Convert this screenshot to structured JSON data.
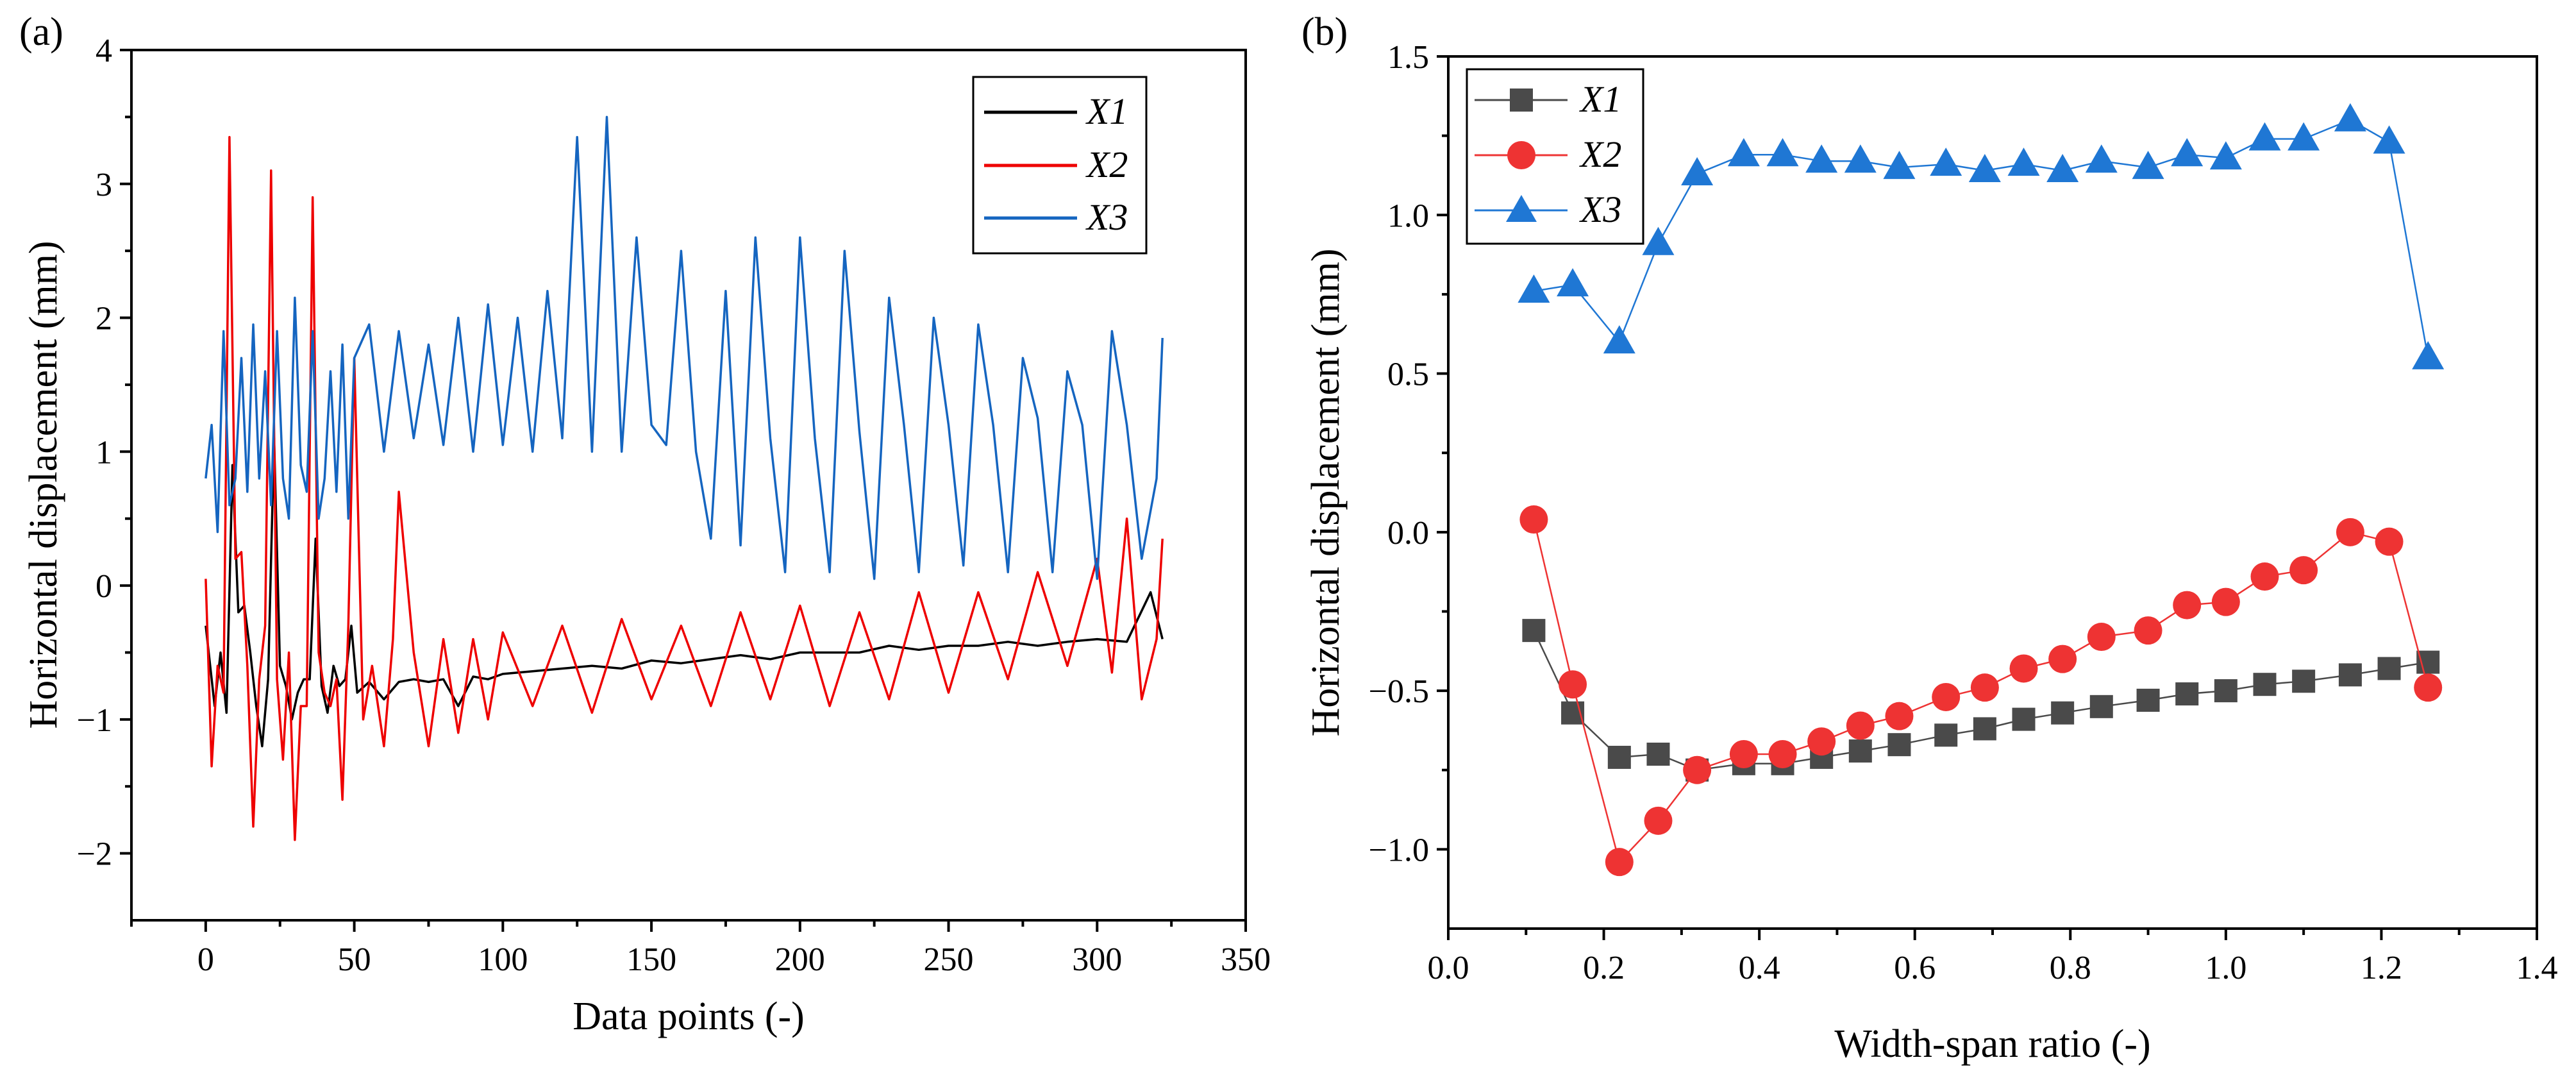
{
  "chart_data": [
    {
      "type": "line",
      "panel_label": "(a)",
      "xlabel": "Data points (-)",
      "ylabel": "Horizontal displacement (mm)",
      "xlim": [
        -25,
        350
      ],
      "ylim": [
        -2.5,
        4
      ],
      "xticks": [
        "0",
        "50",
        "100",
        "150",
        "200",
        "250",
        "300",
        "350"
      ],
      "yticks": [
        "−2",
        "−1",
        "0",
        "1",
        "2",
        "3",
        "4"
      ],
      "legend_position": "top-right",
      "series": [
        {
          "name": "X1",
          "color": "#000000",
          "x": [
            0,
            3,
            5,
            7,
            9,
            11,
            13,
            15,
            17,
            19,
            21,
            23,
            25,
            27,
            29,
            31,
            33,
            35,
            37,
            39,
            41,
            43,
            45,
            47,
            49,
            51,
            55,
            60,
            65,
            70,
            75,
            80,
            85,
            90,
            95,
            100,
            110,
            120,
            130,
            140,
            150,
            160,
            170,
            180,
            190,
            200,
            210,
            220,
            230,
            240,
            250,
            260,
            270,
            280,
            290,
            300,
            310,
            318,
            322
          ],
          "y": [
            -0.3,
            -0.9,
            -0.5,
            -0.95,
            0.9,
            -0.2,
            -0.15,
            -0.5,
            -0.9,
            -1.2,
            -0.7,
            1.1,
            -0.6,
            -0.75,
            -1.0,
            -0.8,
            -0.7,
            -0.7,
            0.35,
            -0.75,
            -0.95,
            -0.6,
            -0.75,
            -0.7,
            -0.3,
            -0.8,
            -0.72,
            -0.85,
            -0.72,
            -0.7,
            -0.72,
            -0.7,
            -0.9,
            -0.68,
            -0.7,
            -0.66,
            -0.64,
            -0.62,
            -0.6,
            -0.62,
            -0.56,
            -0.58,
            -0.55,
            -0.52,
            -0.55,
            -0.5,
            -0.5,
            -0.5,
            -0.45,
            -0.48,
            -0.45,
            -0.45,
            -0.42,
            -0.45,
            -0.42,
            -0.4,
            -0.42,
            -0.05,
            -0.4
          ]
        },
        {
          "name": "X2",
          "color": "#ee0000",
          "x": [
            0,
            2,
            4,
            6,
            8,
            10,
            12,
            14,
            16,
            18,
            20,
            22,
            24,
            26,
            28,
            30,
            32,
            34,
            36,
            38,
            40,
            42,
            44,
            46,
            48,
            50,
            53,
            56,
            60,
            63,
            65,
            70,
            75,
            80,
            85,
            90,
            95,
            100,
            110,
            120,
            130,
            140,
            150,
            160,
            170,
            180,
            190,
            200,
            210,
            220,
            230,
            240,
            250,
            260,
            270,
            280,
            290,
            300,
            305,
            310,
            315,
            320,
            322
          ],
          "y": [
            0.05,
            -1.35,
            -0.6,
            -0.8,
            3.35,
            0.2,
            0.25,
            -0.6,
            -1.8,
            -0.7,
            -0.3,
            3.1,
            -0.7,
            -1.3,
            -0.5,
            -1.9,
            -0.9,
            -0.9,
            2.9,
            -0.5,
            -0.8,
            -0.9,
            -0.7,
            -1.6,
            -0.3,
            1.7,
            -1.0,
            -0.6,
            -1.2,
            -0.4,
            0.7,
            -0.5,
            -1.2,
            -0.4,
            -1.1,
            -0.4,
            -1.0,
            -0.35,
            -0.9,
            -0.3,
            -0.95,
            -0.25,
            -0.85,
            -0.3,
            -0.9,
            -0.2,
            -0.85,
            -0.15,
            -0.9,
            -0.2,
            -0.85,
            -0.05,
            -0.8,
            -0.05,
            -0.7,
            0.1,
            -0.6,
            0.2,
            -0.65,
            0.5,
            -0.85,
            -0.4,
            0.35
          ]
        },
        {
          "name": "X3",
          "color": "#1565c0",
          "x": [
            0,
            2,
            4,
            6,
            8,
            10,
            12,
            14,
            16,
            18,
            20,
            22,
            24,
            26,
            28,
            30,
            32,
            34,
            36,
            38,
            40,
            42,
            44,
            46,
            48,
            50,
            55,
            60,
            65,
            70,
            75,
            80,
            85,
            90,
            95,
            100,
            105,
            110,
            115,
            120,
            125,
            130,
            135,
            140,
            145,
            150,
            155,
            160,
            165,
            170,
            175,
            180,
            185,
            190,
            195,
            200,
            205,
            210,
            215,
            220,
            225,
            230,
            235,
            240,
            245,
            250,
            255,
            260,
            265,
            270,
            275,
            280,
            285,
            290,
            295,
            300,
            305,
            310,
            315,
            320,
            322
          ],
          "y": [
            0.8,
            1.2,
            0.4,
            1.9,
            0.6,
            0.8,
            1.7,
            0.7,
            1.95,
            0.8,
            1.6,
            0.6,
            1.9,
            0.8,
            0.5,
            2.15,
            0.9,
            0.7,
            1.9,
            0.5,
            0.8,
            1.6,
            0.7,
            1.8,
            0.5,
            1.7,
            1.95,
            1.0,
            1.9,
            1.1,
            1.8,
            1.05,
            2.0,
            1.0,
            2.1,
            1.05,
            2.0,
            1.0,
            2.2,
            1.1,
            3.35,
            1.0,
            3.5,
            1.0,
            2.6,
            1.2,
            1.05,
            2.5,
            1.0,
            0.35,
            2.2,
            0.3,
            2.6,
            1.1,
            0.1,
            2.6,
            1.1,
            0.1,
            2.5,
            1.15,
            0.05,
            2.15,
            1.2,
            0.1,
            2.0,
            1.2,
            0.15,
            1.95,
            1.2,
            0.1,
            1.7,
            1.25,
            0.1,
            1.6,
            1.2,
            0.05,
            1.9,
            1.2,
            0.2,
            0.8,
            1.85
          ]
        }
      ]
    },
    {
      "type": "line",
      "panel_label": "(b)",
      "xlabel": "Width-span ratio (-)",
      "ylabel": "Horizontal displacement (mm)",
      "xlim": [
        0.0,
        1.4
      ],
      "ylim": [
        -1.25,
        1.5
      ],
      "xticks": [
        "0.0",
        "0.2",
        "0.4",
        "0.6",
        "0.8",
        "1.0",
        "1.2",
        "1.4"
      ],
      "yticks": [
        "−1.0",
        "−0.5",
        "0.0",
        "0.5",
        "1.0",
        "1.5"
      ],
      "legend_position": "top-left",
      "series": [
        {
          "name": "X1",
          "color": "#4a4a4a",
          "marker": "square",
          "x": [
            0.11,
            0.16,
            0.22,
            0.27,
            0.32,
            0.38,
            0.43,
            0.48,
            0.53,
            0.58,
            0.64,
            0.69,
            0.74,
            0.79,
            0.84,
            0.9,
            0.95,
            1.0,
            1.05,
            1.1,
            1.16,
            1.21,
            1.26
          ],
          "y": [
            -0.31,
            -0.57,
            -0.71,
            -0.7,
            -0.75,
            -0.73,
            -0.73,
            -0.71,
            -0.69,
            -0.67,
            -0.64,
            -0.62,
            -0.59,
            -0.57,
            -0.55,
            -0.53,
            -0.51,
            -0.5,
            -0.48,
            -0.47,
            -0.45,
            -0.43,
            -0.41
          ]
        },
        {
          "name": "X2",
          "color": "#ee3333",
          "marker": "circle",
          "x": [
            0.11,
            0.16,
            0.22,
            0.27,
            0.32,
            0.38,
            0.43,
            0.48,
            0.53,
            0.58,
            0.64,
            0.69,
            0.74,
            0.79,
            0.84,
            0.9,
            0.95,
            1.0,
            1.05,
            1.1,
            1.16,
            1.21,
            1.26
          ],
          "y": [
            0.04,
            -0.48,
            -1.04,
            -0.91,
            -0.75,
            -0.7,
            -0.7,
            -0.66,
            -0.61,
            -0.58,
            -0.52,
            -0.49,
            -0.43,
            -0.4,
            -0.33,
            -0.31,
            -0.23,
            -0.22,
            -0.14,
            -0.12,
            0.0,
            -0.03,
            -0.49
          ]
        },
        {
          "name": "X3",
          "color": "#1f77d4",
          "marker": "triangle",
          "x": [
            0.11,
            0.16,
            0.22,
            0.27,
            0.32,
            0.38,
            0.43,
            0.48,
            0.53,
            0.58,
            0.64,
            0.69,
            0.74,
            0.79,
            0.84,
            0.9,
            0.95,
            1.0,
            1.05,
            1.1,
            1.16,
            1.21,
            1.26
          ],
          "y": [
            0.76,
            0.78,
            0.6,
            0.91,
            1.13,
            1.19,
            1.19,
            1.17,
            1.17,
            1.15,
            1.16,
            1.14,
            1.16,
            1.14,
            1.17,
            1.15,
            1.19,
            1.18,
            1.24,
            1.24,
            1.3,
            1.23,
            0.55
          ]
        }
      ]
    }
  ]
}
